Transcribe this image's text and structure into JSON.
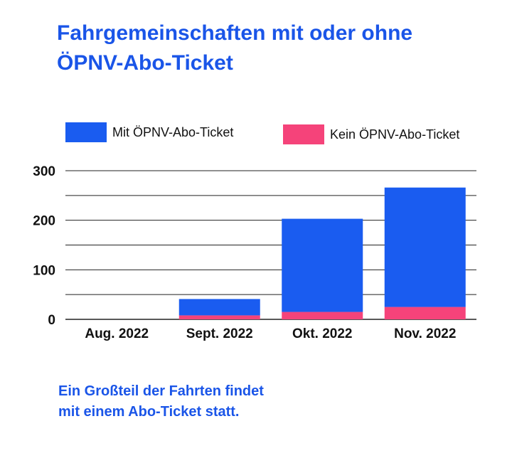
{
  "title": {
    "line1": "Fahrgemeinschaften mit oder ohne",
    "line2": "ÖPNV-Abo-Ticket"
  },
  "caption": {
    "line1": "Ein Großteil der Fahrten findet",
    "line2": "mit einem Abo-Ticket statt."
  },
  "colors": {
    "accent": "#1a55e8",
    "series_mit": "#1a5cf0",
    "series_kein": "#f5437a",
    "grid": "#222222"
  },
  "chart_data": {
    "type": "bar",
    "stacked": true,
    "categories": [
      "Aug. 2022",
      "Sept. 2022",
      "Okt. 2022",
      "Nov. 2022"
    ],
    "series": [
      {
        "name": "Kein ÖPNV-Abo-Ticket",
        "color": "#f5437a",
        "values": [
          0,
          8,
          15,
          25
        ]
      },
      {
        "name": "Mit ÖPNV-Abo-Ticket",
        "color": "#1a5cf0",
        "values": [
          0,
          33,
          188,
          241
        ]
      }
    ],
    "legend": [
      "Mit ÖPNV-Abo-Ticket",
      "Kein ÖPNV-Abo-Ticket"
    ],
    "ylim": [
      0,
      300
    ],
    "yticks": [
      0,
      100,
      200,
      300
    ],
    "ytick_labels": [
      "0",
      "100",
      "200",
      "300"
    ],
    "minor_gridlines": [
      50,
      150,
      250
    ],
    "xlabel": "",
    "ylabel": "",
    "grid": true,
    "legend_position": "top"
  }
}
